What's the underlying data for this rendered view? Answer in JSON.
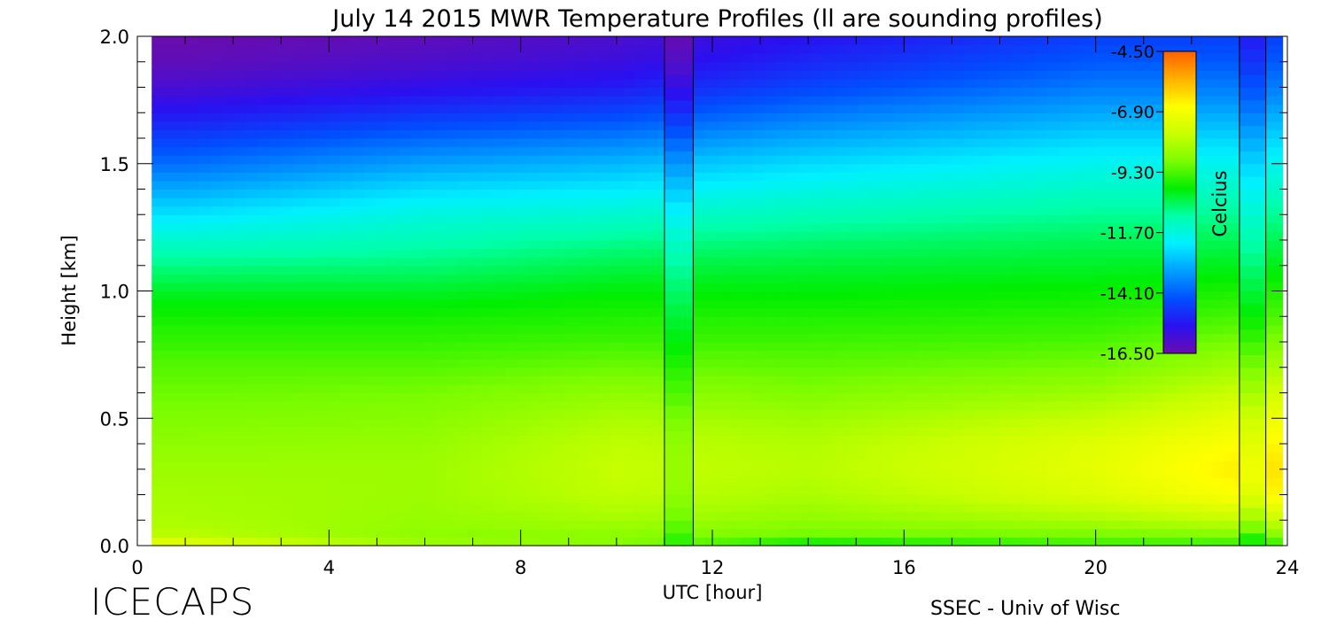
{
  "chart_data": {
    "type": "heatmap",
    "title": "July 14 2015 MWR Temperature Profiles (ll are sounding profiles)",
    "xlabel": "UTC [hour]",
    "ylabel": "Height [km]",
    "xlim": [
      0,
      24
    ],
    "ylim": [
      0.0,
      2.0
    ],
    "x_ticks": [
      "0",
      "4",
      "8",
      "12",
      "16",
      "20",
      "24"
    ],
    "y_ticks": [
      "0.0",
      "0.5",
      "1.0",
      "1.5",
      "2.0"
    ],
    "colorbar": {
      "label": "Celcius",
      "ticks": [
        "-4.50",
        "-6.90",
        "-9.30",
        "-11.70",
        "-14.10",
        "-16.50"
      ],
      "range": [
        -16.5,
        -4.5
      ],
      "colormap": [
        "#6a0dad",
        "#2a10f0",
        "#0050ff",
        "#00a0ff",
        "#00f0ff",
        "#00ffaa",
        "#00ee00",
        "#7cfc00",
        "#c8ff00",
        "#ffff00",
        "#ffb000",
        "#ff6000"
      ]
    },
    "data_start_hour": 0.3,
    "data_end_hour": 23.9,
    "sounding_profiles_hours": [
      [
        11.0,
        11.6
      ],
      [
        23.0,
        23.55
      ]
    ],
    "heights_km": [
      0.0,
      0.02,
      0.05,
      0.1,
      0.2,
      0.3,
      0.4,
      0.5,
      0.6,
      0.7,
      0.8,
      0.9,
      1.0,
      1.1,
      1.2,
      1.3,
      1.4,
      1.5,
      1.6,
      1.7,
      1.8,
      1.9,
      2.0
    ],
    "profile_hours": [
      1,
      6,
      10,
      14,
      20,
      23.5
    ],
    "profiles_celsius": [
      [
        -6.9,
        -7.5,
        -8.0,
        -8.2,
        -8.3,
        -8.4,
        -8.6,
        -8.8,
        -9.0,
        -9.2,
        -9.5,
        -9.8,
        -10.2,
        -10.8,
        -11.5,
        -12.3,
        -13.1,
        -13.9,
        -14.6,
        -15.3,
        -15.9,
        -16.3,
        -16.5
      ],
      [
        -8.3,
        -8.5,
        -8.6,
        -8.5,
        -8.4,
        -8.4,
        -8.5,
        -8.7,
        -8.9,
        -9.2,
        -9.5,
        -9.8,
        -10.2,
        -10.7,
        -11.2,
        -11.7,
        -12.4,
        -13.2,
        -14.0,
        -14.8,
        -15.5,
        -16.0,
        -16.3
      ],
      [
        -8.5,
        -8.7,
        -8.6,
        -8.3,
        -7.9,
        -7.8,
        -7.9,
        -8.2,
        -8.6,
        -9.0,
        -9.4,
        -9.7,
        -10.0,
        -10.4,
        -10.9,
        -11.5,
        -12.2,
        -12.9,
        -13.7,
        -14.5,
        -15.2,
        -15.7,
        -16.0
      ],
      [
        -10.5,
        -9.5,
        -8.9,
        -8.6,
        -8.2,
        -8.0,
        -8.1,
        -8.4,
        -8.8,
        -9.1,
        -9.4,
        -9.7,
        -10.0,
        -10.3,
        -10.7,
        -11.2,
        -11.8,
        -12.4,
        -13.1,
        -13.8,
        -14.5,
        -15.0,
        -15.4
      ],
      [
        -9.6,
        -9.2,
        -8.8,
        -8.2,
        -7.4,
        -7.2,
        -7.3,
        -7.8,
        -8.4,
        -8.9,
        -9.3,
        -9.6,
        -9.9,
        -10.2,
        -10.5,
        -10.9,
        -11.4,
        -11.9,
        -12.5,
        -13.1,
        -13.7,
        -14.2,
        -14.6
      ],
      [
        -9.8,
        -9.2,
        -8.6,
        -7.8,
        -6.6,
        -6.3,
        -6.6,
        -7.0,
        -7.6,
        -8.2,
        -8.8,
        -9.3,
        -9.7,
        -10.1,
        -10.5,
        -10.9,
        -11.4,
        -11.9,
        -12.5,
        -13.1,
        -13.7,
        -14.2,
        -14.6
      ]
    ]
  },
  "branding": {
    "logo": "ICECAPS",
    "credit": "SSEC - Univ of Wisc"
  }
}
